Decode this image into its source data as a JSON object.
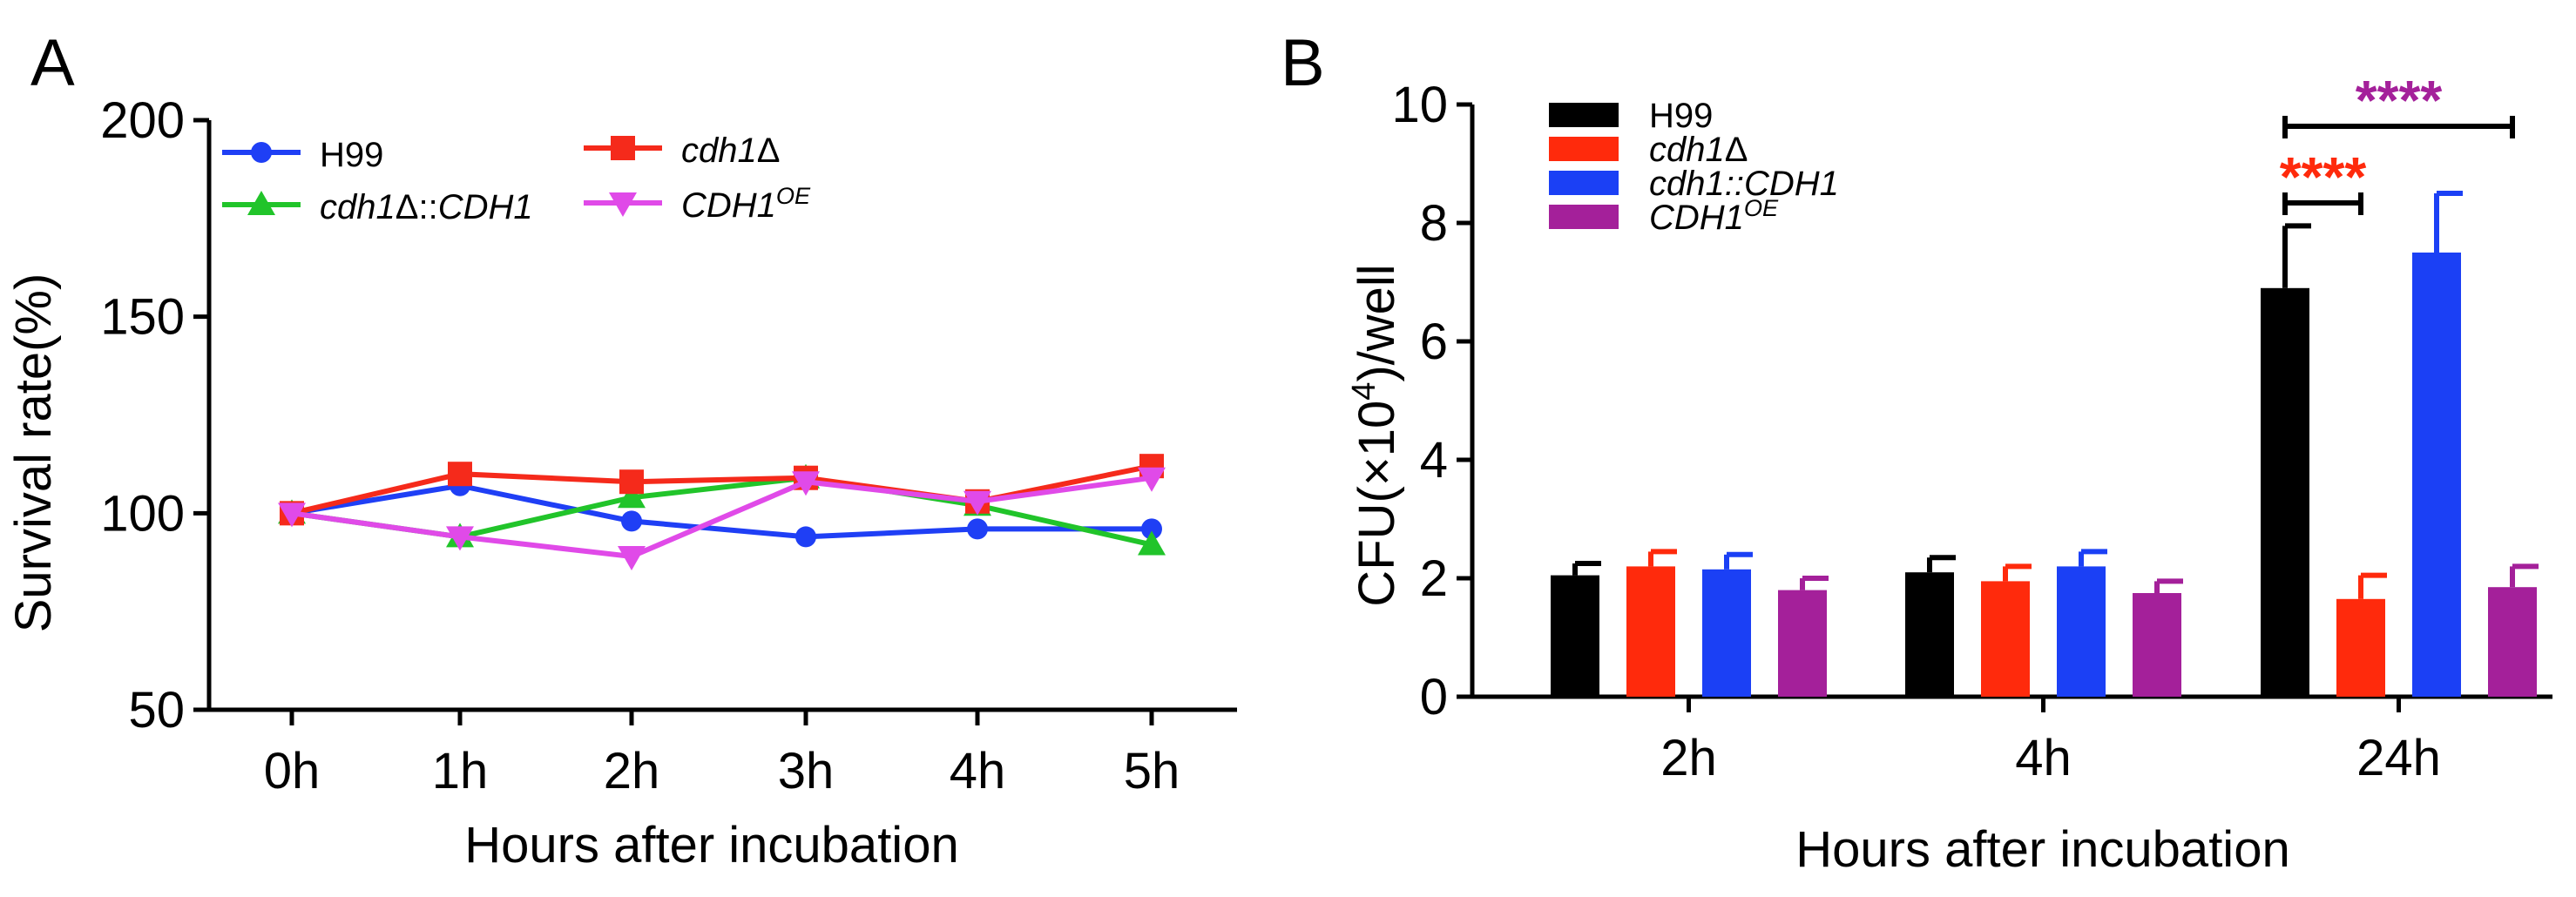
{
  "panels": [
    {
      "label": "A",
      "chart_data": {
        "type": "line",
        "xlabel": "Hours after incubation",
        "ylabel": "Survival rate(%)",
        "categories": [
          "0h",
          "1h",
          "2h",
          "3h",
          "4h",
          "5h"
        ],
        "ylim": [
          50,
          200
        ],
        "yticks": [
          50,
          100,
          150,
          200
        ],
        "legend_placement": "top-left",
        "series": [
          {
            "name": "H99",
            "label": {
              "prefix": "H99",
              "italic": "",
              "suffix": "",
              "sup": ""
            },
            "color": "#1f3ff5",
            "marker": "circle",
            "values": [
              100,
              107,
              98,
              94,
              96,
              96
            ]
          },
          {
            "name": "cdh1Δ::CDH1",
            "label": {
              "prefix": "",
              "italic": "cdh1",
              "suffix": "Δ::",
              "italic2": "CDH1",
              "sup": ""
            },
            "color": "#21c42a",
            "marker": "triangle-up",
            "values": [
              100,
              94,
              104,
              109,
              102,
              92
            ]
          },
          {
            "name": "cdh1Δ",
            "label": {
              "prefix": "",
              "italic": "cdh1",
              "suffix": "Δ",
              "sup": ""
            },
            "color": "#f52a1b",
            "marker": "square",
            "values": [
              100,
              110,
              108,
              109,
              103,
              112
            ]
          },
          {
            "name": "CDH1OE",
            "label": {
              "prefix": "",
              "italic": "CDH1",
              "suffix": "",
              "sup": "OE"
            },
            "color": "#e04ae8",
            "marker": "triangle-down",
            "values": [
              100,
              94,
              89,
              108,
              103,
              109
            ]
          }
        ]
      }
    },
    {
      "label": "B",
      "chart_data": {
        "type": "bar",
        "xlabel": "Hours after incubation",
        "ylabel": {
          "main": "CFU(×10",
          "sup": "4",
          "tail": ")/well"
        },
        "categories": [
          "2h",
          "4h",
          "24h"
        ],
        "ylim": [
          0,
          10
        ],
        "yticks": [
          0,
          2,
          4,
          6,
          8,
          10
        ],
        "legend_placement": "top-left",
        "series": [
          {
            "name": "H99",
            "label": {
              "prefix": "H99",
              "italic": "",
              "suffix": "",
              "sup": ""
            },
            "color": "#000000",
            "values": [
              2.05,
              2.1,
              6.9
            ],
            "errors": [
              0.2,
              0.25,
              1.05
            ]
          },
          {
            "name": "cdh1Δ",
            "label": {
              "prefix": "",
              "italic": "cdh1",
              "suffix": "Δ",
              "sup": ""
            },
            "color": "#ff2a0c",
            "values": [
              2.2,
              1.95,
              1.65
            ],
            "errors": [
              0.25,
              0.25,
              0.4
            ]
          },
          {
            "name": "cdh1::CDH1",
            "label": {
              "prefix": "",
              "italic": "cdh1::CDH1",
              "suffix": "",
              "sup": ""
            },
            "color": "#1b40f5",
            "values": [
              2.15,
              2.2,
              7.5
            ],
            "errors": [
              0.25,
              0.25,
              1.0
            ]
          },
          {
            "name": "CDH1OE",
            "label": {
              "prefix": "",
              "italic": "CDH1",
              "suffix": "",
              "sup": "OE"
            },
            "color": "#a4209a",
            "values": [
              1.8,
              1.75,
              1.85
            ],
            "errors": [
              0.2,
              0.2,
              0.35
            ]
          }
        ],
        "annotations": [
          {
            "text": "****",
            "color": "#ff2a0c",
            "category": "24h",
            "from_series": 0,
            "to_series": 1
          },
          {
            "text": "****",
            "color": "#a4209a",
            "category": "24h",
            "from_series": 0,
            "to_series": 3
          }
        ]
      }
    }
  ]
}
